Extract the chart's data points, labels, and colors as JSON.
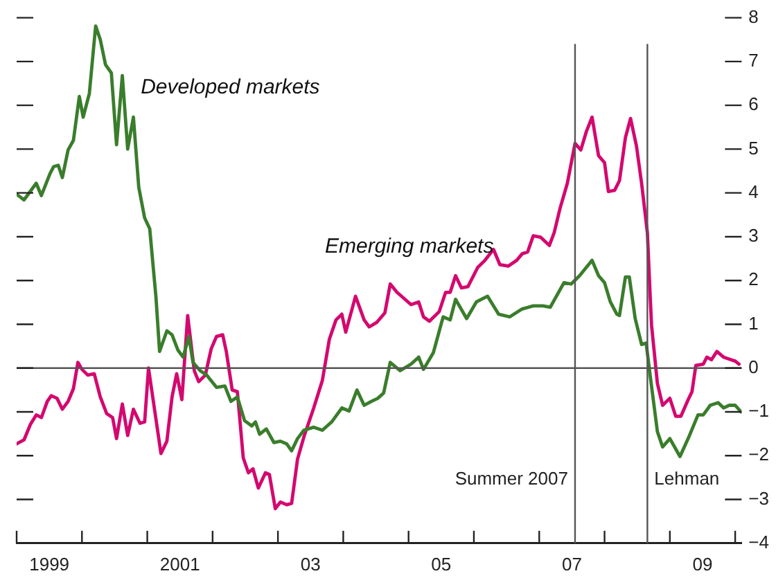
{
  "chart_data": {
    "type": "line",
    "xlim": [
      "1999-01-01",
      "2010-02-06"
    ],
    "xticks": [
      {
        "value": "1999-01-01",
        "label": null
      },
      {
        "value": "1999-07-01",
        "label": "1999"
      },
      {
        "value": "2000-01-01",
        "label": null
      },
      {
        "value": "2001-01-01",
        "label": null
      },
      {
        "value": "2001-07-01",
        "label": "2001"
      },
      {
        "value": "2002-01-01",
        "label": null
      },
      {
        "value": "2003-01-01",
        "label": null
      },
      {
        "value": "2003-07-01",
        "label": "03"
      },
      {
        "value": "2004-01-01",
        "label": null
      },
      {
        "value": "2005-01-01",
        "label": null
      },
      {
        "value": "2005-07-01",
        "label": "05"
      },
      {
        "value": "2006-01-01",
        "label": null
      },
      {
        "value": "2007-01-01",
        "label": null
      },
      {
        "value": "2007-07-01",
        "label": "07"
      },
      {
        "value": "2008-01-01",
        "label": null
      },
      {
        "value": "2009-01-01",
        "label": null
      },
      {
        "value": "2009-07-01",
        "label": "09"
      },
      {
        "value": "2010-01-01",
        "label": null
      }
    ],
    "ylim": [
      -4,
      8
    ],
    "yticks": [
      8,
      7,
      6,
      5,
      4,
      3,
      2,
      1,
      0,
      {
        "value": -1,
        "label": "−1"
      },
      {
        "value": -2,
        "label": "−2"
      },
      {
        "value": -3,
        "label": "−3"
      },
      {
        "value": -4,
        "label": "−4"
      }
    ],
    "ref_lines": [
      {
        "axis": "y",
        "value": 0,
        "color": "#555555"
      },
      {
        "axis": "x",
        "value": "2007-07-19",
        "label": "Summer 2007",
        "color": "#555555"
      },
      {
        "axis": "x",
        "value": "2008-08-28",
        "label": "Lehman",
        "color": "#555555"
      }
    ],
    "series": [
      {
        "name": "Developed markets",
        "color": "#3a7d2c",
        "x": [
          "1999-01-01",
          "1999-02-11",
          "1999-04-19",
          "1999-05-18",
          "1999-07-05",
          "1999-07-26",
          "1999-08-21",
          "1999-09-13",
          "1999-10-15",
          "1999-11-14",
          "1999-12-17",
          "2000-01-08",
          "2000-02-11",
          "2000-03-17",
          "2000-04-12",
          "2000-05-11",
          "2000-06-13",
          "2000-07-12",
          "2000-08-14",
          "2000-09-13",
          "2000-10-15",
          "2000-11-14",
          "2000-12-17",
          "2001-01-15",
          "2001-02-18",
          "2001-03-09",
          "2001-04-19",
          "2001-05-18",
          "2001-06-20",
          "2001-07-19",
          "2001-08-21",
          "2001-09-13",
          "2001-10-23",
          "2001-11-28",
          "2002-01-23",
          "2002-03-09",
          "2002-04-12",
          "2002-05-18",
          "2002-06-27",
          "2002-08-07",
          "2002-08-28",
          "2002-09-20",
          "2002-10-28",
          "2002-12-09",
          "2003-01-15",
          "2003-02-18",
          "2003-03-17",
          "2003-04-19",
          "2003-05-25",
          "2003-07-19",
          "2003-09-06",
          "2003-10-28",
          "2003-12-24",
          "2004-02-03",
          "2004-03-17",
          "2004-04-26",
          "2004-06-06",
          "2004-07-12",
          "2004-08-14",
          "2004-09-20",
          "2004-11-14",
          "2005-01-15",
          "2005-02-25",
          "2005-03-24",
          "2005-05-18",
          "2005-07-12",
          "2005-08-21",
          "2005-09-20",
          "2005-11-21",
          "2006-01-15",
          "2006-03-17",
          "2006-05-18",
          "2006-07-19",
          "2006-09-27",
          "2006-11-28",
          "2007-01-23",
          "2007-03-02",
          "2007-05-18",
          "2007-06-27",
          "2007-08-14",
          "2007-10-23",
          "2007-11-28",
          "2008-01-01",
          "2008-02-03",
          "2008-03-09",
          "2008-03-24",
          "2008-04-26",
          "2008-05-18",
          "2008-06-20",
          "2008-07-26",
          "2008-08-21",
          "2008-09-13",
          "2008-10-23",
          "2008-11-21",
          "2009-01-01",
          "2009-02-25",
          "2009-04-19",
          "2009-06-06",
          "2009-07-05",
          "2009-08-14",
          "2009-09-27",
          "2009-10-28",
          "2009-11-28",
          "2010-01-01",
          "2010-02-03"
        ],
        "values": [
          3.97,
          3.84,
          4.22,
          3.94,
          4.44,
          4.6,
          4.63,
          4.35,
          4.98,
          5.2,
          6.2,
          5.73,
          6.27,
          7.81,
          7.5,
          6.93,
          6.74,
          5.1,
          6.68,
          5.0,
          5.73,
          4.13,
          3.43,
          3.18,
          1.6,
          0.38,
          0.85,
          0.76,
          0.41,
          0.25,
          0.72,
          0.13,
          -0.06,
          -0.16,
          -0.44,
          -0.41,
          -0.76,
          -0.66,
          -1.2,
          -1.32,
          -1.23,
          -1.51,
          -1.39,
          -1.7,
          -1.67,
          -1.73,
          -1.89,
          -1.61,
          -1.42,
          -1.35,
          -1.42,
          -1.23,
          -0.91,
          -0.98,
          -0.5,
          -0.85,
          -0.76,
          -0.69,
          -0.57,
          0.13,
          -0.06,
          0.09,
          0.25,
          -0.03,
          0.35,
          1.17,
          1.1,
          1.57,
          1.13,
          1.51,
          1.64,
          1.23,
          1.17,
          1.35,
          1.42,
          1.42,
          1.39,
          1.95,
          1.92,
          2.11,
          2.46,
          2.11,
          1.95,
          1.51,
          1.23,
          1.2,
          2.08,
          2.08,
          1.13,
          0.54,
          0.57,
          -0.19,
          -1.45,
          -1.8,
          -1.61,
          -2.02,
          -1.54,
          -1.07,
          -1.07,
          -0.85,
          -0.79,
          -0.91,
          -0.85,
          -0.85,
          -1.0
        ]
      },
      {
        "name": "Emerging markets",
        "color": "#d4086f",
        "x": [
          "1999-01-01",
          "1999-02-11",
          "1999-03-17",
          "1999-04-19",
          "1999-05-18",
          "1999-06-20",
          "1999-07-12",
          "1999-08-14",
          "1999-09-13",
          "1999-10-15",
          "1999-11-14",
          "1999-12-09",
          "2000-01-01",
          "2000-02-03",
          "2000-03-09",
          "2000-04-12",
          "2000-05-18",
          "2000-06-20",
          "2000-07-12",
          "2000-08-14",
          "2000-09-13",
          "2000-10-15",
          "2000-11-21",
          "2000-12-17",
          "2001-01-08",
          "2001-03-17",
          "2001-04-19",
          "2001-05-18",
          "2001-06-13",
          "2001-07-12",
          "2001-08-14",
          "2001-09-20",
          "2001-10-15",
          "2001-11-21",
          "2001-12-24",
          "2002-01-23",
          "2002-02-25",
          "2002-03-17",
          "2002-04-19",
          "2002-05-18",
          "2002-06-20",
          "2002-07-19",
          "2002-08-14",
          "2002-09-13",
          "2002-10-23",
          "2002-11-14",
          "2002-12-17",
          "2003-01-15",
          "2003-02-18",
          "2003-03-17",
          "2003-04-19",
          "2003-05-25",
          "2003-07-19",
          "2003-09-06",
          "2003-10-15",
          "2003-11-21",
          "2003-12-24",
          "2004-01-15",
          "2004-03-09",
          "2004-04-26",
          "2004-05-25",
          "2004-07-05",
          "2004-08-21",
          "2004-09-20",
          "2004-10-28",
          "2005-01-15",
          "2005-02-25",
          "2005-03-24",
          "2005-04-26",
          "2005-06-20",
          "2005-07-26",
          "2005-08-21",
          "2005-09-20",
          "2005-10-23",
          "2005-11-28",
          "2006-01-23",
          "2006-03-02",
          "2006-04-19",
          "2006-05-25",
          "2006-07-12",
          "2006-08-28",
          "2006-09-27",
          "2006-10-28",
          "2006-11-28",
          "2007-01-08",
          "2007-02-25",
          "2007-03-24",
          "2007-04-26",
          "2007-06-06",
          "2007-07-19",
          "2007-08-21",
          "2007-09-20",
          "2007-10-23",
          "2007-11-28",
          "2008-01-01",
          "2008-01-23",
          "2008-02-25",
          "2008-03-24",
          "2008-04-26",
          "2008-05-25",
          "2008-06-27",
          "2008-07-26",
          "2008-08-28",
          "2008-09-13",
          "2008-09-20",
          "2008-10-23",
          "2008-11-21",
          "2009-01-01",
          "2009-02-03",
          "2009-03-02",
          "2009-04-12",
          "2009-05-03",
          "2009-05-25",
          "2009-07-05",
          "2009-07-26",
          "2009-08-21",
          "2009-09-20",
          "2009-10-28",
          "2009-12-09",
          "2010-01-01",
          "2010-01-23"
        ],
        "values": [
          -1.73,
          -1.64,
          -1.29,
          -1.07,
          -1.13,
          -0.76,
          -0.63,
          -0.69,
          -0.94,
          -0.76,
          -0.47,
          0.13,
          -0.03,
          -0.16,
          -0.13,
          -0.66,
          -1.04,
          -1.13,
          -1.61,
          -0.82,
          -1.54,
          -0.94,
          -1.26,
          -1.23,
          0.0,
          -1.95,
          -1.67,
          -0.66,
          -0.13,
          -0.72,
          1.2,
          -0.06,
          -0.31,
          -0.16,
          0.44,
          0.72,
          0.76,
          0.38,
          -0.5,
          -0.54,
          -2.05,
          -2.39,
          -2.3,
          -2.74,
          -2.39,
          -2.43,
          -3.21,
          -3.06,
          -3.12,
          -3.09,
          -2.08,
          -1.57,
          -0.91,
          -0.28,
          0.66,
          1.1,
          1.23,
          0.82,
          1.64,
          1.1,
          0.94,
          1.04,
          1.26,
          1.92,
          1.73,
          1.45,
          1.51,
          1.17,
          1.07,
          1.29,
          1.73,
          1.73,
          2.11,
          1.83,
          1.86,
          2.3,
          2.46,
          2.71,
          2.36,
          2.33,
          2.46,
          2.61,
          2.65,
          3.02,
          2.99,
          2.8,
          3.09,
          3.65,
          4.22,
          5.13,
          4.98,
          5.39,
          5.73,
          4.85,
          4.69,
          4.03,
          4.06,
          4.28,
          5.26,
          5.7,
          5.07,
          4.22,
          3.09,
          1.6,
          0.98,
          -0.35,
          -0.85,
          -0.69,
          -1.1,
          -1.1,
          -0.72,
          -0.54,
          0.06,
          0.09,
          0.25,
          0.19,
          0.38,
          0.25,
          0.19,
          0.16,
          0.09
        ]
      }
    ]
  }
}
